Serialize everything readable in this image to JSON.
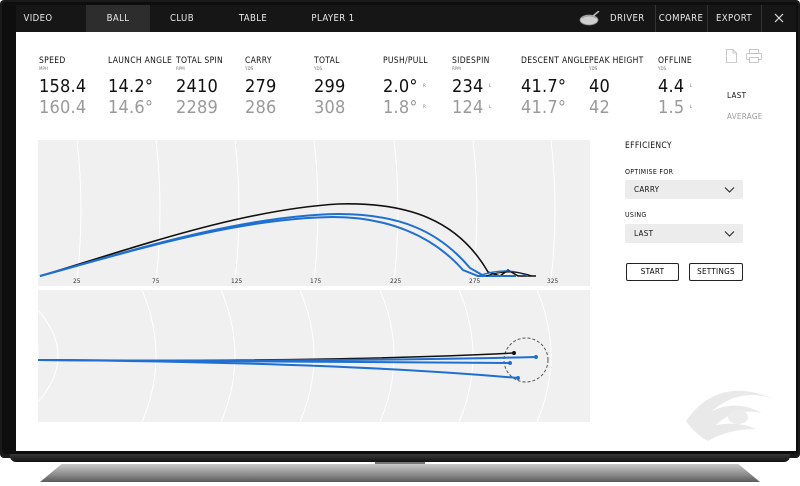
{
  "nav": {
    "tabs": [
      {
        "label": "VIDEO"
      },
      {
        "label": "BALL"
      },
      {
        "label": "CLUB"
      },
      {
        "label": "TABLE"
      },
      {
        "label": "PLAYER 1"
      }
    ],
    "active_tab": "BALL",
    "right": {
      "driver_label": "DRIVER",
      "compare_label": "COMPARE",
      "export_label": "EXPORT",
      "close_icon": "close-icon"
    }
  },
  "stats": [
    {
      "label": "SPEED",
      "unit": "MPH",
      "last": "158.4",
      "avg": "160.4"
    },
    {
      "label": "LAUNCH ANGLE",
      "unit": "",
      "last": "14.2°",
      "avg": "14.6°"
    },
    {
      "label": "TOTAL SPIN",
      "unit": "RPM",
      "last": "2410",
      "avg": "2289"
    },
    {
      "label": "CARRY",
      "unit": "YDS",
      "last": "279",
      "avg": "286"
    },
    {
      "label": "TOTAL",
      "unit": "YDS",
      "last": "299",
      "avg": "308"
    },
    {
      "label": "PUSH/PULL",
      "unit": "",
      "last": "2.0°",
      "last_dir": "R",
      "avg": "1.8°",
      "avg_dir": "R"
    },
    {
      "label": "SIDESPIN",
      "unit": "RPM",
      "last": "234",
      "last_dir": "L",
      "avg": "124",
      "avg_dir": "L"
    },
    {
      "label": "DESCENT ANGLE",
      "unit": "",
      "last": "41.7°",
      "avg": "41.7°"
    },
    {
      "label": "PEAK HEIGHT",
      "unit": "YDS",
      "last": "40",
      "avg": "42"
    },
    {
      "label": "OFFLINE",
      "unit": "YDS",
      "last": "4.4",
      "last_dir": "L",
      "avg": "1.5",
      "avg_dir": "L"
    }
  ],
  "row_labels": {
    "last": "LAST",
    "average": "AVERAGE"
  },
  "icons": {
    "document": "document-icon",
    "print": "print-icon",
    "logo": "brand-logo-icon",
    "driver": "driver-club-icon"
  },
  "chart_data": [
    {
      "type": "line",
      "title": "",
      "x_ticks": [
        "25",
        "75",
        "125",
        "175",
        "225",
        "275",
        "325"
      ],
      "series": [
        {
          "color": "#111111"
        },
        {
          "color": "#1f6fd1"
        },
        {
          "color": "#1f6fd1"
        }
      ]
    },
    {
      "type": "line",
      "title": "",
      "series": [
        {
          "color": "#111111"
        },
        {
          "color": "#1f6fd1"
        },
        {
          "color": "#1f6fd1"
        },
        {
          "color": "#1f6fd1"
        }
      ]
    }
  ],
  "panel": {
    "title": "EFFICIENCY",
    "optimise_label": "OPTIMISE FOR",
    "optimise_value": "CARRY",
    "using_label": "USING",
    "using_value": "LAST",
    "start_label": "START",
    "settings_label": "SETTINGS"
  },
  "colors": {
    "accent": "#1f6fd1",
    "nav_bg": "#161616",
    "chart_bg": "#f0f0f0"
  }
}
